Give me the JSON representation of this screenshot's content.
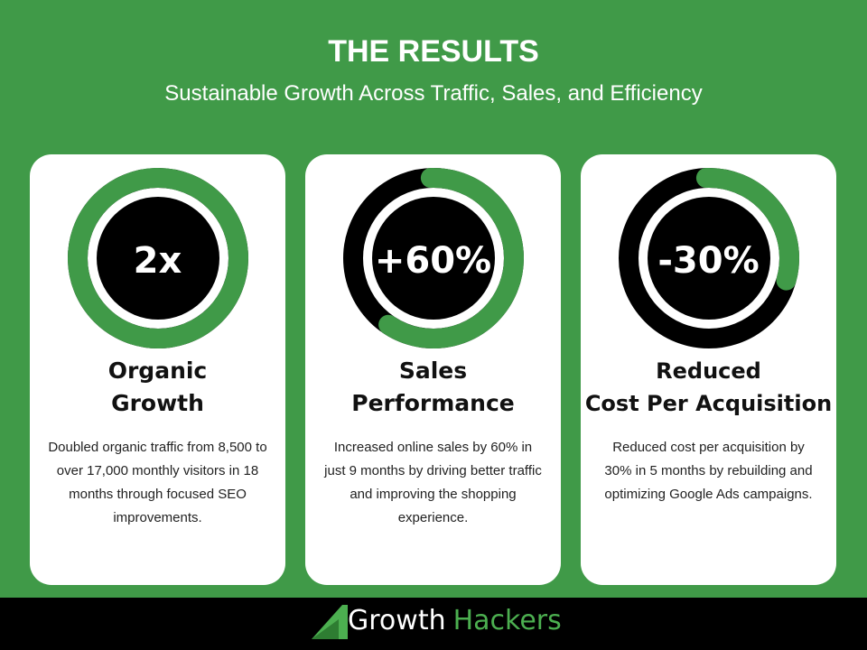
{
  "header": {
    "title": "THE RESULTS",
    "subtitle": "Sustainable Growth Across Traffic, Sales, and Efficiency"
  },
  "colors": {
    "accent": "#409a48",
    "ring_track": "#000000",
    "card": "#ffffff"
  },
  "cards": [
    {
      "value": "2x",
      "progress": 1.0,
      "heading_1": "Organic",
      "heading_2": "Growth",
      "description": "Doubled organic traffic from 8,500 to over 17,000 monthly visitors in 18 months through focused SEO improvements."
    },
    {
      "value": "+60%",
      "progress": 0.6,
      "heading_1": "Sales",
      "heading_2": "Performance",
      "description": "Increased online sales by 60% in just 9 months by driving better traffic and improving the shopping experience."
    },
    {
      "value": "-30%",
      "progress": 0.3,
      "heading_1": "Reduced",
      "heading_2": "Cost Per Acquisition",
      "description": "Reduced cost per acquisition by 30% in 5 months by rebuilding and optimizing Google Ads campaigns."
    }
  ],
  "footer": {
    "logo_part1": "Growth",
    "logo_part2": "Hackers"
  }
}
